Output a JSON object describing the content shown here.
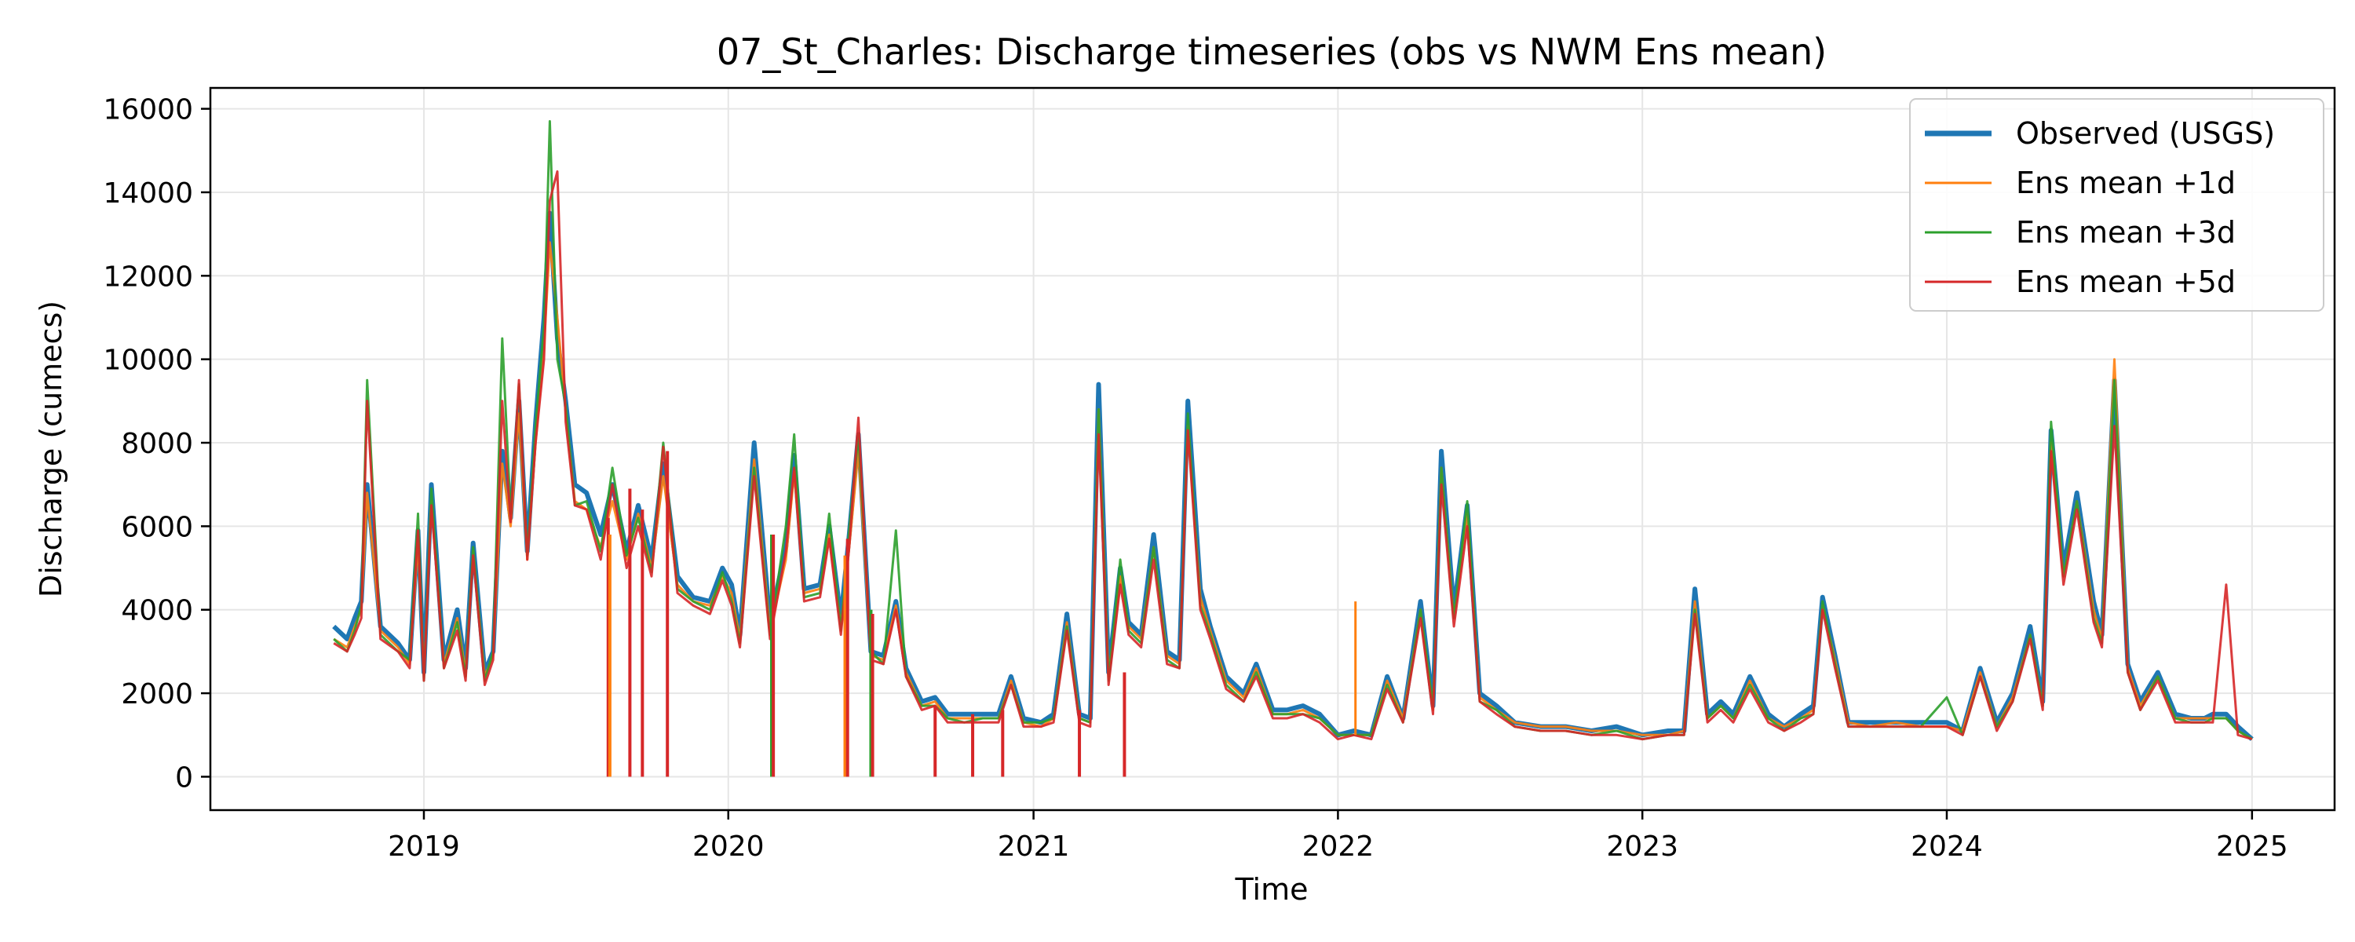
{
  "chart_data": {
    "type": "line",
    "title": "07_St_Charles: Discharge timeseries (obs vs NWM Ens mean)",
    "xlabel": "Time",
    "ylabel": "Discharge (cumecs)",
    "xlim": [
      "2018-04-20",
      "2025-04-10"
    ],
    "ylim": [
      -800,
      16500
    ],
    "x_ticks": [
      "2019",
      "2020",
      "2021",
      "2022",
      "2023",
      "2024",
      "2025"
    ],
    "y_ticks": [
      0,
      2000,
      4000,
      6000,
      8000,
      10000,
      12000,
      14000,
      16000
    ],
    "grid": true,
    "legend": "top-right",
    "colors": {
      "obs": "#1f77b4",
      "d1": "#ff7f0e",
      "d3": "#2ca02c",
      "d5": "#d62728"
    },
    "dates": [
      "2018-09-15",
      "2018-10-01",
      "2018-10-10",
      "2018-10-18",
      "2018-10-25",
      "2018-11-10",
      "2018-12-01",
      "2018-12-15",
      "2018-12-25",
      "2019-01-01",
      "2019-01-10",
      "2019-01-25",
      "2019-02-10",
      "2019-02-20",
      "2019-03-01",
      "2019-03-15",
      "2019-03-25",
      "2019-04-05",
      "2019-04-15",
      "2019-04-25",
      "2019-05-05",
      "2019-05-15",
      "2019-05-25",
      "2019-06-01",
      "2019-06-10",
      "2019-06-20",
      "2019-07-01",
      "2019-07-15",
      "2019-08-01",
      "2019-08-15",
      "2019-09-01",
      "2019-09-15",
      "2019-10-01",
      "2019-10-15",
      "2019-11-01",
      "2019-11-20",
      "2019-12-10",
      "2019-12-25",
      "2020-01-05",
      "2020-01-15",
      "2020-02-01",
      "2020-02-20",
      "2020-03-10",
      "2020-03-20",
      "2020-04-01",
      "2020-04-20",
      "2020-05-01",
      "2020-05-15",
      "2020-05-25",
      "2020-06-05",
      "2020-06-20",
      "2020-07-05",
      "2020-07-20",
      "2020-08-01",
      "2020-08-20",
      "2020-09-05",
      "2020-09-20",
      "2020-10-10",
      "2020-11-01",
      "2020-11-20",
      "2020-12-05",
      "2020-12-20",
      "2021-01-10",
      "2021-01-25",
      "2021-02-10",
      "2021-02-25",
      "2021-03-10",
      "2021-03-20",
      "2021-04-01",
      "2021-04-15",
      "2021-04-25",
      "2021-05-10",
      "2021-05-25",
      "2021-06-10",
      "2021-06-25",
      "2021-07-05",
      "2021-07-20",
      "2021-08-01",
      "2021-08-20",
      "2021-09-10",
      "2021-09-25",
      "2021-10-15",
      "2021-11-01",
      "2021-11-20",
      "2021-12-10",
      "2022-01-01",
      "2022-01-20",
      "2022-02-10",
      "2022-03-01",
      "2022-03-20",
      "2022-04-10",
      "2022-04-25",
      "2022-05-05",
      "2022-05-20",
      "2022-06-05",
      "2022-06-20",
      "2022-07-10",
      "2022-08-01",
      "2022-09-01",
      "2022-10-01",
      "2022-11-01",
      "2022-12-01",
      "2023-01-01",
      "2023-02-01",
      "2023-02-20",
      "2023-03-05",
      "2023-03-20",
      "2023-04-05",
      "2023-04-20",
      "2023-05-10",
      "2023-06-01",
      "2023-06-20",
      "2023-07-10",
      "2023-07-25",
      "2023-08-05",
      "2023-08-20",
      "2023-09-05",
      "2023-10-01",
      "2023-11-01",
      "2023-12-01",
      "2024-01-01",
      "2024-01-20",
      "2024-02-10",
      "2024-03-01",
      "2024-03-20",
      "2024-04-10",
      "2024-04-25",
      "2024-05-05",
      "2024-05-20",
      "2024-06-05",
      "2024-06-25",
      "2024-07-05",
      "2024-07-20",
      "2024-08-05",
      "2024-08-20",
      "2024-09-10",
      "2024-10-01",
      "2024-10-20",
      "2024-11-05",
      "2024-11-15",
      "2024-12-01",
      "2024-12-15",
      "2025-01-01"
    ],
    "series": [
      {
        "name": "Observed (USGS)",
        "values": [
          3600,
          3300,
          3800,
          4200,
          7000,
          3600,
          3200,
          2800,
          5900,
          2500,
          7000,
          2800,
          4000,
          2600,
          5600,
          2500,
          3000,
          7800,
          6200,
          9000,
          5400,
          8500,
          11000,
          13500,
          10500,
          9000,
          7000,
          6800,
          5800,
          7000,
          5400,
          6500,
          5200,
          7500,
          4800,
          4300,
          4200,
          5000,
          4600,
          3400,
          8000,
          3700,
          5500,
          7700,
          4500,
          4600,
          6000,
          3800,
          5800,
          8200,
          3000,
          2900,
          4200,
          2600,
          1800,
          1900,
          1500,
          1500,
          1500,
          1500,
          2400,
          1400,
          1300,
          1500,
          3900,
          1500,
          1400,
          9400,
          2500,
          5000,
          3700,
          3400,
          5800,
          3000,
          2800,
          9000,
          4500,
          3600,
          2400,
          2000,
          2700,
          1600,
          1600,
          1700,
          1500,
          1000,
          1100,
          1000,
          2400,
          1400,
          4200,
          1700,
          7800,
          4000,
          6500,
          2000,
          1700,
          1300,
          1200,
          1200,
          1100,
          1200,
          1000,
          1100,
          1100,
          4500,
          1500,
          1800,
          1500,
          2400,
          1500,
          1200,
          1500,
          1700,
          4300,
          2900,
          1300,
          1300,
          1300,
          1300,
          1300,
          1100,
          2600,
          1300,
          2000,
          3600,
          1800,
          8300,
          5000,
          6800,
          4200,
          3400,
          9500,
          2700,
          1800,
          2500,
          1500,
          1400,
          1400,
          1500,
          1500,
          1200,
          900
        ]
      },
      {
        "name": "Ens mean +1d",
        "values": [
          3300,
          3100,
          3600,
          4000,
          6800,
          3500,
          3100,
          2700,
          5600,
          2400,
          6600,
          2700,
          3800,
          2500,
          5400,
          2400,
          2900,
          7500,
          6000,
          8700,
          5200,
          8000,
          10300,
          12800,
          11000,
          8800,
          6600,
          6400,
          5500,
          6600,
          5200,
          6300,
          5000,
          7200,
          4600,
          4200,
          4100,
          4800,
          4400,
          3300,
          7600,
          3500,
          5200,
          7300,
          4400,
          4500,
          5800,
          3600,
          5500,
          7800,
          2900,
          2800,
          4100,
          2500,
          1700,
          1800,
          1400,
          1400,
          1400,
          1400,
          2300,
          1300,
          1200,
          1400,
          3700,
          1400,
          1300,
          8800,
          2400,
          4800,
          3600,
          3300,
          5500,
          2900,
          2700,
          8400,
          4300,
          3500,
          2300,
          1900,
          2600,
          1500,
          1500,
          1600,
          1400,
          1000,
          1000,
          1000,
          2300,
          1400,
          4000,
          1600,
          7400,
          3800,
          6300,
          1900,
          1600,
          1300,
          1200,
          1200,
          1100,
          1100,
          1000,
          1000,
          1100,
          4200,
          1400,
          1700,
          1400,
          2300,
          1400,
          1200,
          1400,
          1600,
          4100,
          2800,
          1300,
          1200,
          1300,
          1200,
          1200,
          1100,
          2500,
          1200,
          1900,
          3400,
          1700,
          8000,
          4800,
          6600,
          4000,
          3300,
          10000,
          2600,
          1700,
          2400,
          1400,
          1400,
          1400,
          1400,
          1400,
          1100,
          900
        ]
      },
      {
        "name": "Ens mean +3d",
        "values": [
          3300,
          3000,
          3500,
          4100,
          9500,
          3400,
          3000,
          2800,
          6300,
          2300,
          6900,
          2600,
          3700,
          2400,
          5500,
          2300,
          3000,
          10500,
          6300,
          9400,
          5300,
          8400,
          10800,
          15700,
          10000,
          8900,
          6500,
          6600,
          5400,
          7400,
          5300,
          6200,
          4900,
          8000,
          4500,
          4200,
          4000,
          4900,
          4200,
          3200,
          7400,
          3400,
          6000,
          8200,
          4300,
          4400,
          6300,
          3500,
          5900,
          8200,
          3000,
          2700,
          5900,
          2400,
          1700,
          1700,
          1400,
          1300,
          1400,
          1400,
          2200,
          1300,
          1300,
          1400,
          3600,
          1400,
          1300,
          8800,
          2300,
          5200,
          3500,
          3200,
          5500,
          2800,
          2600,
          8700,
          4100,
          3400,
          2200,
          1800,
          2500,
          1500,
          1500,
          1500,
          1400,
          1000,
          1000,
          1000,
          2200,
          1300,
          4000,
          1700,
          7400,
          3800,
          6600,
          1800,
          1600,
          1200,
          1100,
          1100,
          1000,
          1100,
          900,
          1000,
          1000,
          4000,
          1400,
          1700,
          1400,
          2200,
          1400,
          1100,
          1400,
          1500,
          4200,
          2700,
          1200,
          1200,
          1200,
          1200,
          1900,
          1000,
          2400,
          1200,
          1800,
          3400,
          1700,
          8500,
          4800,
          6600,
          3800,
          3200,
          9500,
          2500,
          1600,
          2400,
          1400,
          1300,
          1300,
          1400,
          1400,
          1100,
          900
        ]
      },
      {
        "name": "Ens mean +5d",
        "values": [
          3200,
          3000,
          3400,
          3800,
          9000,
          3300,
          3000,
          2600,
          5900,
          2300,
          6500,
          2600,
          3500,
          2300,
          5300,
          2200,
          2800,
          9000,
          6100,
          9500,
          5200,
          8000,
          10000,
          13800,
          14500,
          8500,
          6500,
          6400,
          5200,
          7000,
          5000,
          6000,
          4800,
          7900,
          4400,
          4100,
          3900,
          4700,
          4100,
          3100,
          7200,
          3300,
          5400,
          7400,
          4200,
          4300,
          5700,
          3400,
          5500,
          8600,
          2800,
          2700,
          4000,
          2400,
          1600,
          1700,
          1300,
          1300,
          1300,
          1300,
          2200,
          1200,
          1200,
          1300,
          3500,
          1300,
          1200,
          8200,
          2200,
          4600,
          3400,
          3100,
          5200,
          2700,
          2600,
          8300,
          4000,
          3300,
          2100,
          1800,
          2400,
          1400,
          1400,
          1500,
          1300,
          900,
          1000,
          900,
          2100,
          1300,
          3800,
          1500,
          7000,
          3600,
          6000,
          1800,
          1500,
          1200,
          1100,
          1100,
          1000,
          1000,
          900,
          1000,
          1000,
          3900,
          1300,
          1600,
          1300,
          2100,
          1300,
          1100,
          1300,
          1500,
          4000,
          2600,
          1200,
          1200,
          1200,
          1200,
          1200,
          1000,
          2400,
          1100,
          1800,
          3300,
          1600,
          7800,
          4600,
          6400,
          3700,
          3100,
          8400,
          2500,
          1600,
          2300,
          1300,
          1300,
          1300,
          1300,
          4600,
          1000,
          900
        ]
      }
    ],
    "dropouts": [
      {
        "date": "2019-08-10",
        "series": "Ens mean +5d",
        "from": 6200
      },
      {
        "date": "2019-08-12",
        "series": "Ens mean +1d",
        "from": 5800
      },
      {
        "date": "2019-09-05",
        "series": "Ens mean +5d",
        "from": 6900
      },
      {
        "date": "2019-09-20",
        "series": "Ens mean +5d",
        "from": 6400
      },
      {
        "date": "2019-10-20",
        "series": "Ens mean +5d",
        "from": 7800
      },
      {
        "date": "2020-02-22",
        "series": "Ens mean +3d",
        "from": 5800
      },
      {
        "date": "2020-02-24",
        "series": "Ens mean +5d",
        "from": 5800
      },
      {
        "date": "2020-05-20",
        "series": "Ens mean +1d",
        "from": 5300
      },
      {
        "date": "2020-05-23",
        "series": "Ens mean +5d",
        "from": 5700
      },
      {
        "date": "2020-06-20",
        "series": "Ens mean +3d",
        "from": 4000
      },
      {
        "date": "2020-06-22",
        "series": "Ens mean +5d",
        "from": 3900
      },
      {
        "date": "2020-09-05",
        "series": "Ens mean +5d",
        "from": 1700
      },
      {
        "date": "2020-10-20",
        "series": "Ens mean +5d",
        "from": 1500
      },
      {
        "date": "2020-11-25",
        "series": "Ens mean +5d",
        "from": 1600
      },
      {
        "date": "2021-02-25",
        "series": "Ens mean +5d",
        "from": 1600
      },
      {
        "date": "2021-04-20",
        "series": "Ens mean +5d",
        "from": 2500
      }
    ],
    "annotations": [
      {
        "date": "2022-01-22",
        "series": "Ens mean +1d",
        "value": 4200
      }
    ]
  }
}
